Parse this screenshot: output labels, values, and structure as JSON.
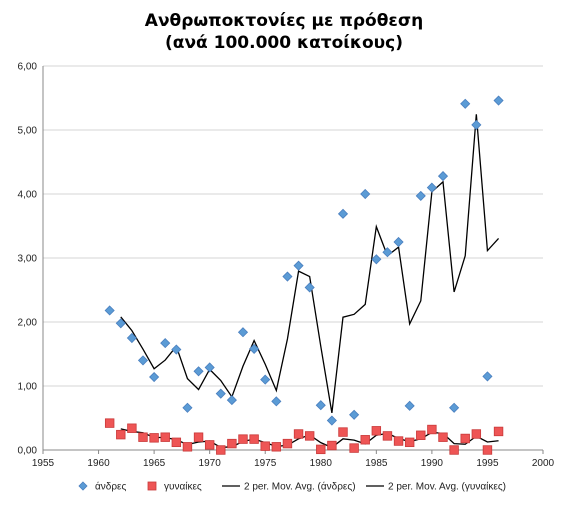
{
  "chart_data": {
    "type": "scatter",
    "title_line1": "Ανθρωποκτονίες με πρόθεση",
    "title_line2": "(ανά 100.000 κατοίκους)",
    "xlim": [
      1955,
      2000
    ],
    "ylim": [
      0,
      6
    ],
    "x_ticks": [
      "1955",
      "1960",
      "1965",
      "1970",
      "1975",
      "1980",
      "1985",
      "1990",
      "1995",
      "2000"
    ],
    "y_ticks": [
      "0,00",
      "1,00",
      "2,00",
      "3,00",
      "4,00",
      "5,00",
      "6,00"
    ],
    "grid": "horizontal",
    "legend_position": "bottom",
    "series": [
      {
        "name": "άνδρες",
        "marker": "diamond",
        "color": "#5b9bd5",
        "x": [
          1961,
          1962,
          1963,
          1964,
          1965,
          1966,
          1967,
          1968,
          1969,
          1970,
          1971,
          1972,
          1973,
          1974,
          1975,
          1976,
          1977,
          1978,
          1979,
          1980,
          1981,
          1982,
          1983,
          1984,
          1985,
          1986,
          1987,
          1988,
          1989,
          1990,
          1991,
          1992,
          1993,
          1994,
          1995,
          1996
        ],
        "y": [
          2.18,
          1.98,
          1.75,
          1.4,
          1.14,
          1.67,
          1.57,
          0.66,
          1.23,
          1.29,
          0.88,
          0.78,
          1.84,
          1.58,
          1.1,
          0.76,
          2.71,
          2.88,
          2.54,
          0.7,
          0.46,
          3.69,
          0.55,
          4.0,
          2.98,
          3.09,
          3.25,
          0.69,
          3.97,
          4.1,
          4.28,
          0.66,
          5.41,
          5.08,
          1.15,
          5.46
        ]
      },
      {
        "name": "γυναίκες",
        "marker": "square",
        "color": "#ee5555",
        "x": [
          1961,
          1962,
          1963,
          1964,
          1965,
          1966,
          1967,
          1968,
          1969,
          1970,
          1971,
          1972,
          1973,
          1974,
          1975,
          1976,
          1977,
          1978,
          1979,
          1980,
          1981,
          1982,
          1983,
          1984,
          1985,
          1986,
          1987,
          1988,
          1989,
          1990,
          1991,
          1992,
          1993,
          1994,
          1995,
          1996
        ],
        "y": [
          0.42,
          0.24,
          0.34,
          0.2,
          0.19,
          0.2,
          0.12,
          0.05,
          0.2,
          0.08,
          0.0,
          0.1,
          0.17,
          0.17,
          0.06,
          0.05,
          0.1,
          0.25,
          0.22,
          0.01,
          0.07,
          0.28,
          0.03,
          0.16,
          0.3,
          0.22,
          0.14,
          0.12,
          0.23,
          0.32,
          0.2,
          0.0,
          0.18,
          0.25,
          0.0,
          0.29
        ]
      },
      {
        "name": "2 per. Mov. Avg. (άνδρες)",
        "type": "line",
        "color": "#000000",
        "x": [
          1962,
          1963,
          1964,
          1965,
          1966,
          1967,
          1968,
          1969,
          1970,
          1971,
          1972,
          1973,
          1974,
          1975,
          1976,
          1977,
          1978,
          1979,
          1980,
          1981,
          1982,
          1983,
          1984,
          1985,
          1986,
          1987,
          1988,
          1989,
          1990,
          1991,
          1992,
          1993,
          1994,
          1995,
          1996
        ],
        "y": [
          2.08,
          1.865,
          1.575,
          1.27,
          1.405,
          1.62,
          1.115,
          0.945,
          1.26,
          1.085,
          0.83,
          1.31,
          1.71,
          1.34,
          0.93,
          1.735,
          2.795,
          2.71,
          1.62,
          0.58,
          2.075,
          2.12,
          2.275,
          3.49,
          3.035,
          3.17,
          1.97,
          2.33,
          4.035,
          4.19,
          2.47,
          3.035,
          5.245,
          3.115,
          3.305
        ]
      },
      {
        "name": "2 per. Mov. Avg. (γυναίκες)",
        "type": "line",
        "color": "#000000",
        "x": [
          1962,
          1963,
          1964,
          1965,
          1966,
          1967,
          1968,
          1969,
          1970,
          1971,
          1972,
          1973,
          1974,
          1975,
          1976,
          1977,
          1978,
          1979,
          1980,
          1981,
          1982,
          1983,
          1984,
          1985,
          1986,
          1987,
          1988,
          1989,
          1990,
          1991,
          1992,
          1993,
          1994,
          1995,
          1996
        ],
        "y": [
          0.33,
          0.29,
          0.27,
          0.195,
          0.195,
          0.16,
          0.085,
          0.125,
          0.14,
          0.04,
          0.05,
          0.135,
          0.17,
          0.115,
          0.055,
          0.075,
          0.175,
          0.235,
          0.115,
          0.04,
          0.175,
          0.155,
          0.095,
          0.23,
          0.26,
          0.18,
          0.13,
          0.175,
          0.275,
          0.26,
          0.1,
          0.09,
          0.215,
          0.125,
          0.145
        ]
      }
    ]
  }
}
